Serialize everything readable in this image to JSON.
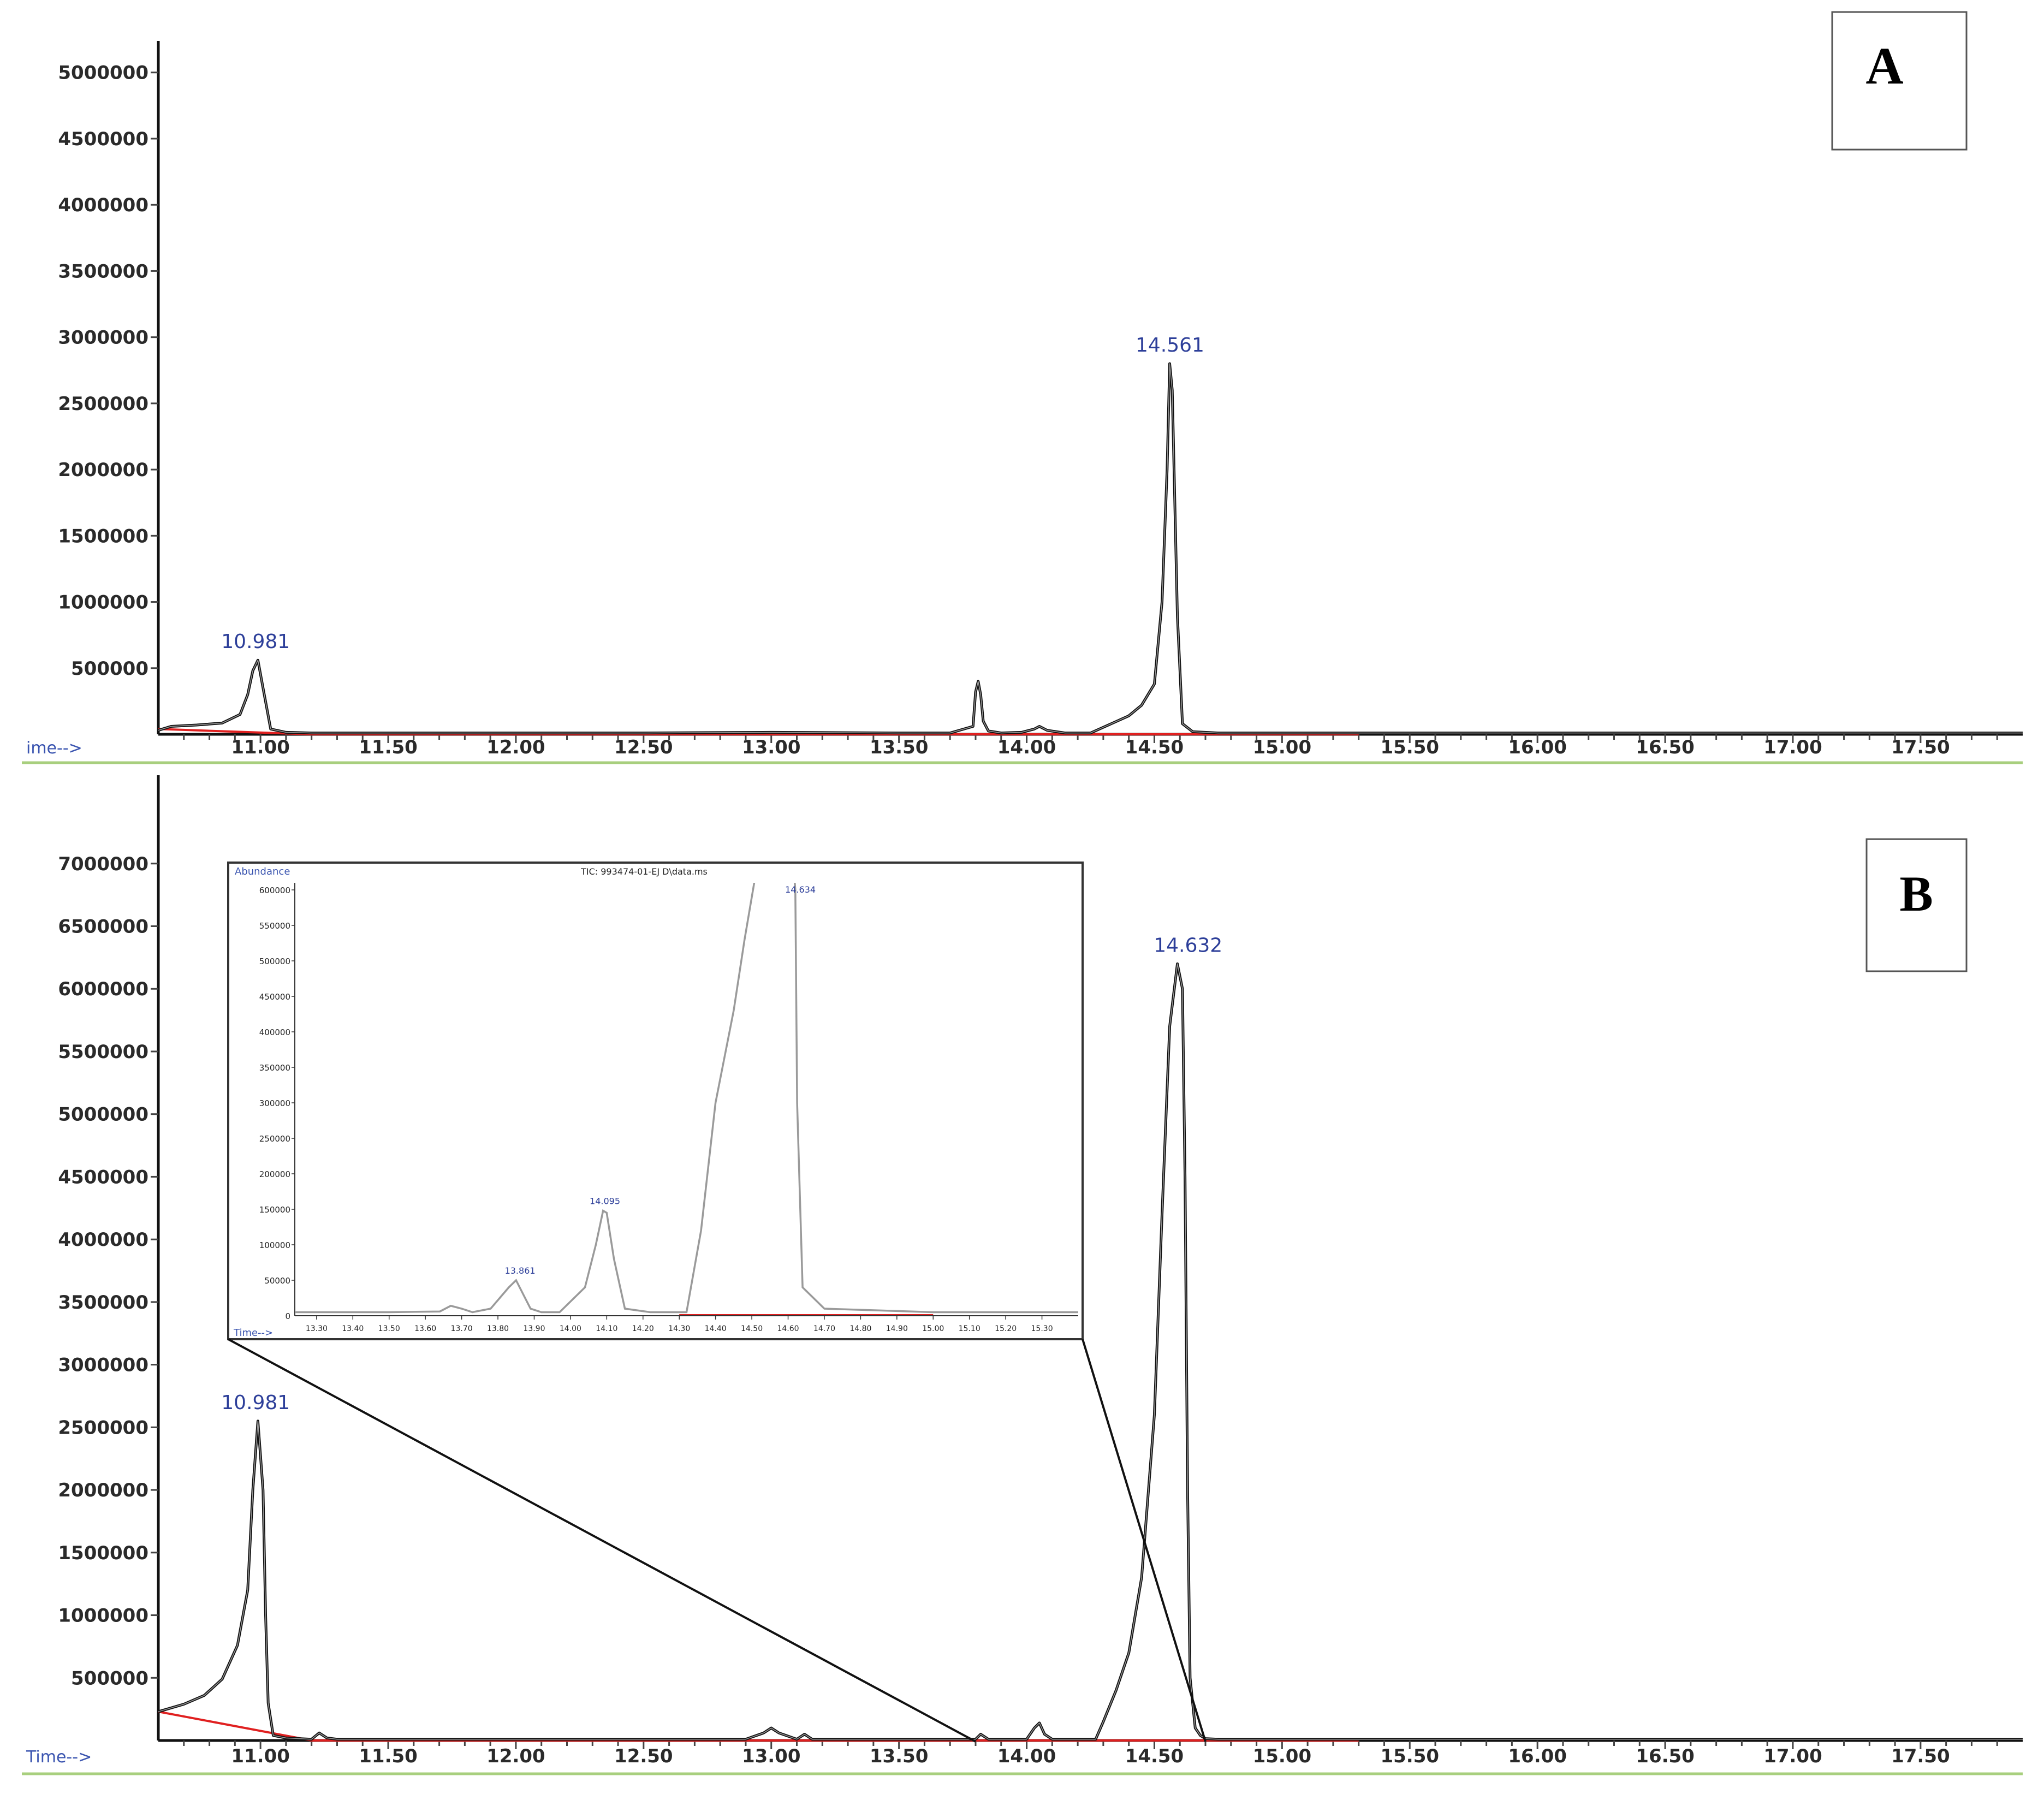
{
  "chart_data": [
    {
      "type": "line",
      "panel_label": "A",
      "xlabel": "ime-->",
      "x_ticks": [
        "11.00",
        "11.50",
        "12.00",
        "12.50",
        "13.00",
        "13.50",
        "14.00",
        "14.50",
        "15.00",
        "15.50",
        "16.00",
        "16.50",
        "17.00",
        "17.50"
      ],
      "y_ticks": [
        "500000",
        "1000000",
        "1500000",
        "2000000",
        "2500000",
        "3000000",
        "3500000",
        "4000000",
        "4500000",
        "5000000"
      ],
      "xlim": [
        10.6,
        17.9
      ],
      "ylim": [
        0,
        5300000
      ],
      "series": [
        {
          "x": [
            10.6,
            10.65,
            10.75,
            10.85,
            10.92,
            10.95,
            10.97,
            10.99,
            11.01,
            11.04,
            11.1,
            11.2,
            11.5,
            12.0,
            12.5,
            13.0,
            13.5,
            13.7,
            13.79,
            13.8,
            13.81,
            13.82,
            13.83,
            13.85,
            13.9,
            13.98,
            14.03,
            14.05,
            14.08,
            14.15,
            14.25,
            14.32,
            14.4,
            14.45,
            14.5,
            14.53,
            14.55,
            14.56,
            14.57,
            14.59,
            14.61,
            14.65,
            14.75,
            15.0,
            15.5,
            16.0,
            16.5,
            17.0,
            17.5,
            17.9
          ],
          "y": [
            30000,
            60000,
            70000,
            85000,
            150000,
            300000,
            480000,
            560000,
            350000,
            40000,
            15000,
            10000,
            10000,
            10000,
            10000,
            15000,
            10000,
            10000,
            60000,
            320000,
            400000,
            300000,
            100000,
            25000,
            10000,
            15000,
            40000,
            60000,
            30000,
            10000,
            10000,
            70000,
            140000,
            220000,
            380000,
            1000000,
            2000000,
            2800000,
            2600000,
            900000,
            80000,
            20000,
            10000,
            10000,
            10000,
            10000,
            10000,
            10000,
            10000,
            10000
          ]
        }
      ],
      "baseline": {
        "x": [
          10.6,
          11.2,
          14.3,
          15.3
        ],
        "y": [
          40000,
          0,
          0,
          0
        ]
      },
      "peak_labels": [
        {
          "x": 10.981,
          "label": "10.981"
        },
        {
          "x": 14.561,
          "label": "14.561"
        }
      ]
    },
    {
      "type": "line",
      "panel_label": "B",
      "xlabel": "Time-->",
      "x_ticks": [
        "11.00",
        "11.50",
        "12.00",
        "12.50",
        "13.00",
        "13.50",
        "14.00",
        "14.50",
        "15.00",
        "15.50",
        "16.00",
        "16.50",
        "17.00",
        "17.50"
      ],
      "y_ticks": [
        "500000",
        "1000000",
        "1500000",
        "2000000",
        "2500000",
        "3000000",
        "3500000",
        "4000000",
        "4500000",
        "5000000",
        "5500000",
        "6000000",
        "6500000",
        "7000000"
      ],
      "xlim": [
        10.6,
        17.9
      ],
      "ylim": [
        0,
        7400000
      ],
      "series": [
        {
          "x": [
            10.6,
            10.7,
            10.78,
            10.85,
            10.91,
            10.95,
            10.97,
            10.99,
            11.01,
            11.02,
            11.03,
            11.05,
            11.1,
            11.2,
            11.23,
            11.26,
            11.3,
            11.5,
            12.0,
            12.5,
            12.9,
            12.97,
            13.0,
            13.03,
            13.1,
            13.13,
            13.16,
            13.5,
            13.8,
            13.82,
            13.85,
            14.0,
            14.03,
            14.05,
            14.07,
            14.1,
            14.2,
            14.27,
            14.3,
            14.35,
            14.4,
            14.45,
            14.5,
            14.53,
            14.56,
            14.59,
            14.61,
            14.62,
            14.63,
            14.64,
            14.66,
            14.68,
            14.7,
            14.75,
            15.0,
            15.5,
            16.0,
            16.5,
            17.0,
            17.5,
            17.9
          ],
          "y": [
            230000,
            290000,
            360000,
            490000,
            760000,
            1200000,
            2000000,
            2550000,
            2000000,
            1000000,
            300000,
            40000,
            20000,
            10000,
            60000,
            20000,
            10000,
            10000,
            10000,
            10000,
            10000,
            60000,
            100000,
            60000,
            10000,
            50000,
            10000,
            10000,
            10000,
            50000,
            10000,
            10000,
            100000,
            140000,
            50000,
            10000,
            10000,
            10000,
            150000,
            400000,
            700000,
            1300000,
            2600000,
            4200000,
            5700000,
            6200000,
            6000000,
            4500000,
            2000000,
            500000,
            100000,
            40000,
            15000,
            10000,
            10000,
            10000,
            10000,
            10000,
            10000,
            10000,
            10000
          ]
        }
      ],
      "baseline": {
        "x": [
          10.6,
          11.2,
          13.8,
          15.3
        ],
        "y": [
          230000,
          0,
          0,
          0
        ]
      },
      "peak_labels": [
        {
          "x": 10.981,
          "label": "10.981"
        },
        {
          "x": 14.632,
          "label": "14.632"
        }
      ],
      "inset": {
        "title": "TIC: 993474-01-EJ D\\data.ms",
        "ylabel": "Abundance",
        "xlabel": "Time-->",
        "x_ticks": [
          "13.30",
          "13.40",
          "13.50",
          "13.60",
          "13.70",
          "13.80",
          "13.90",
          "14.00",
          "14.10",
          "14.20",
          "14.30",
          "14.40",
          "14.50",
          "14.60",
          "14.70",
          "14.80",
          "14.90",
          "15.00",
          "15.10",
          "15.20",
          "15.30"
        ],
        "y_ticks": [
          "50000",
          "100000",
          "150000",
          "200000",
          "250000",
          "300000",
          "350000",
          "400000",
          "450000",
          "500000",
          "550000",
          "600000"
        ],
        "xlim": [
          13.24,
          15.4
        ],
        "ylim": [
          0,
          610000
        ],
        "series": [
          {
            "x": [
              13.24,
              13.5,
              13.64,
              13.67,
              13.7,
              13.73,
              13.78,
              13.83,
              13.85,
              13.87,
              13.89,
              13.92,
              13.97,
              14.04,
              14.07,
              14.09,
              14.1,
              14.12,
              14.15,
              14.22,
              14.32,
              14.36,
              14.4,
              14.45,
              14.48,
              14.51,
              14.57,
              14.617,
              14.62,
              14.625,
              14.64,
              14.7,
              15.0,
              15.4
            ],
            "y": [
              5000,
              5000,
              6000,
              14000,
              10000,
              5000,
              10000,
              40000,
              50000,
              30000,
              10000,
              5000,
              5000,
              40000,
              100000,
              148000,
              145000,
              80000,
              10000,
              5000,
              5000,
              120000,
              300000,
              430000,
              530000,
              620000,
              620000,
              620000,
              600000,
              300000,
              40000,
              10000,
              5000,
              5000
            ]
          }
        ],
        "peak_labels": [
          {
            "x": 13.861,
            "label": "13.861"
          },
          {
            "x": 14.095,
            "label": "14.095"
          },
          {
            "x": 14.634,
            "label": "14.634"
          }
        ]
      }
    }
  ]
}
